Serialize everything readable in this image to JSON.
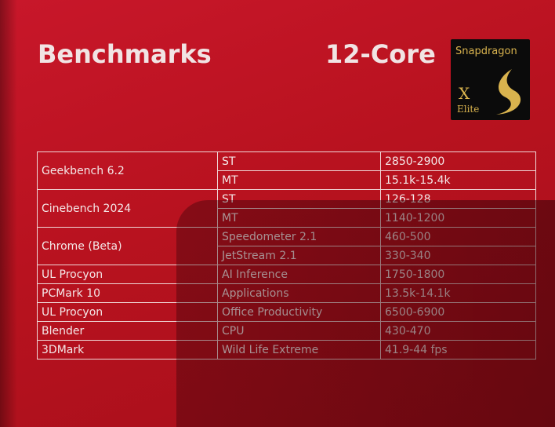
{
  "header": {
    "title": "Benchmarks",
    "core": "12-Core"
  },
  "logo": {
    "brand": "Snapdragon",
    "x": "X",
    "tier": "Elite"
  },
  "table": {
    "groups": [
      {
        "name": "Geekbench 6.2",
        "rows": [
          [
            "ST",
            "2850-2900"
          ],
          [
            "MT",
            "15.1k-15.4k"
          ]
        ]
      },
      {
        "name": "Cinebench 2024",
        "rows": [
          [
            "ST",
            "126-128"
          ],
          [
            "MT",
            "1140-1200"
          ]
        ]
      },
      {
        "name": "Chrome (Beta)",
        "rows": [
          [
            "Speedometer 2.1",
            "460-500"
          ],
          [
            "JetStream 2.1",
            "330-340"
          ]
        ]
      },
      {
        "name": "UL Procyon",
        "rows": [
          [
            "AI Inference",
            "1750-1800"
          ]
        ]
      },
      {
        "name": "PCMark 10",
        "rows": [
          [
            "Applications",
            "13.5k-14.1k"
          ]
        ]
      },
      {
        "name": "UL Procyon",
        "rows": [
          [
            "Office Productivity",
            "6500-6900"
          ]
        ]
      },
      {
        "name": "Blender",
        "rows": [
          [
            "CPU",
            "430-470"
          ]
        ]
      },
      {
        "name": "3DMark",
        "rows": [
          [
            "Wild Life Extreme",
            "41.9-44 fps"
          ]
        ]
      }
    ]
  }
}
